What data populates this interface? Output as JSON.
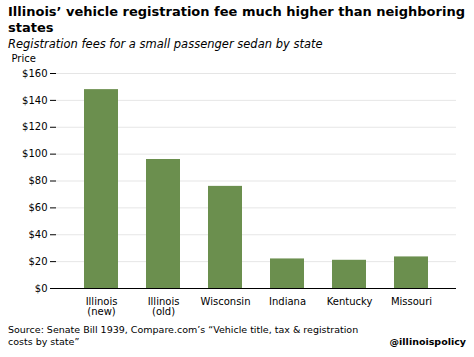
{
  "chart_data": {
    "type": "bar",
    "title": "Illinois’ vehicle registration fee much higher than neighboring states",
    "subtitle": "Registration fees for a small passenger sedan by state",
    "categories": [
      "Illinois\n(new)",
      "Illinois\n(old)",
      "Wisconsin",
      "Indiana",
      "Kentucky",
      "Missouri"
    ],
    "values": [
      148,
      96,
      76,
      22,
      21,
      23.5
    ],
    "color": "#6b8f4e",
    "ylabel": "Price",
    "ylim": [
      0,
      160
    ],
    "yticks": [
      {
        "value": 0,
        "label": "$0"
      },
      {
        "value": 20,
        "label": "$20"
      },
      {
        "value": 40,
        "label": "$40"
      },
      {
        "value": 60,
        "label": "$60"
      },
      {
        "value": 80,
        "label": "$80"
      },
      {
        "value": 100,
        "label": "$100"
      },
      {
        "value": 120,
        "label": "$120"
      },
      {
        "value": 140,
        "label": "$140"
      },
      {
        "value": 160,
        "label": "$160"
      }
    ],
    "grid": true,
    "source": "Source: Senate Bill 1939, Compare.com’s “Vehicle title, tax & registration costs by state”",
    "handle": "@illinoispolicy"
  }
}
